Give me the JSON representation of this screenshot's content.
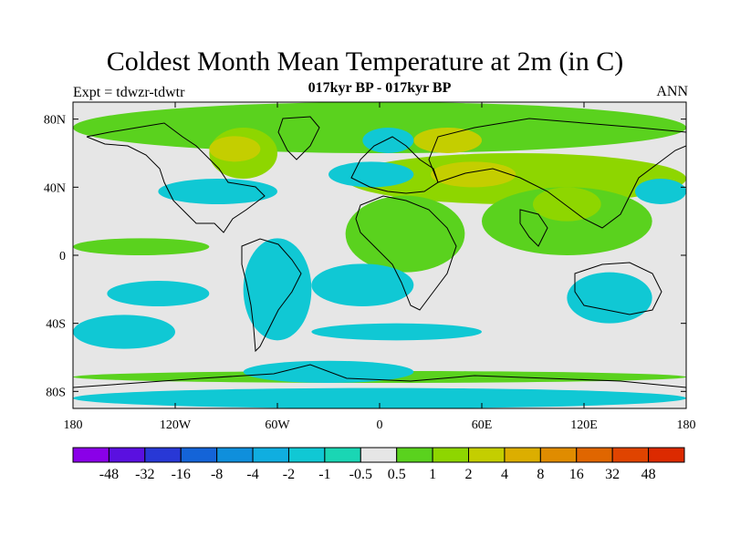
{
  "title": "Coldest Month Mean Temperature at 2m (in C)",
  "subtitle": "017kyr BP - 017kyr BP",
  "left_label": "Expt = tdwzr-tdwtr",
  "right_label": "ANN",
  "chart_data": {
    "type": "heatmap",
    "projection": "cylindrical equidistant",
    "xlim": [
      -180,
      180
    ],
    "ylim": [
      -90,
      90
    ],
    "x_ticks": [
      {
        "value": -180,
        "label": "180"
      },
      {
        "value": -120,
        "label": "120W"
      },
      {
        "value": -60,
        "label": "60W"
      },
      {
        "value": 0,
        "label": "0"
      },
      {
        "value": 60,
        "label": "60E"
      },
      {
        "value": 120,
        "label": "120E"
      },
      {
        "value": 180,
        "label": "180"
      }
    ],
    "y_ticks": [
      {
        "value": 80,
        "label": "80N"
      },
      {
        "value": 40,
        "label": "40N"
      },
      {
        "value": 0,
        "label": "0"
      },
      {
        "value": -40,
        "label": "40S"
      },
      {
        "value": -80,
        "label": "80S"
      }
    ],
    "colorbar": {
      "labels": [
        "-48",
        "-32",
        "-16",
        "-8",
        "-4",
        "-2",
        "-1",
        "-0.5",
        "0.5",
        "1",
        "2",
        "4",
        "8",
        "16",
        "32",
        "48"
      ],
      "colors": [
        "#8a00e8",
        "#5a10e0",
        "#2838d6",
        "#1464d8",
        "#0f8fdc",
        "#10aee0",
        "#10c8d4",
        "#1ad6b4",
        "#e6e6e6",
        "#5ad21e",
        "#8ed600",
        "#c4ce00",
        "#dcae00",
        "#e08c00",
        "#e06600",
        "#e04400",
        "#dc2a00"
      ]
    },
    "regions": [
      {
        "color_index": 9,
        "lon": [
          -180,
          180
        ],
        "lat": [
          60,
          90
        ],
        "note": "arctic band"
      },
      {
        "color_index": 10,
        "lon": [
          -100,
          -60
        ],
        "lat": [
          45,
          75
        ]
      },
      {
        "color_index": 11,
        "lon": [
          -100,
          -70
        ],
        "lat": [
          55,
          70
        ]
      },
      {
        "color_index": 11,
        "lon": [
          20,
          60
        ],
        "lat": [
          60,
          75
        ]
      },
      {
        "color_index": 10,
        "lon": [
          -20,
          180
        ],
        "lat": [
          30,
          60
        ]
      },
      {
        "color_index": 11,
        "lon": [
          30,
          80
        ],
        "lat": [
          40,
          55
        ]
      },
      {
        "color_index": 9,
        "lon": [
          -20,
          50
        ],
        "lat": [
          -10,
          35
        ]
      },
      {
        "color_index": 9,
        "lon": [
          60,
          160
        ],
        "lat": [
          0,
          40
        ]
      },
      {
        "color_index": 10,
        "lon": [
          90,
          130
        ],
        "lat": [
          20,
          40
        ]
      },
      {
        "color_index": 9,
        "lon": [
          -180,
          -100
        ],
        "lat": [
          0,
          10
        ]
      },
      {
        "color_index": 9,
        "lon": [
          -180,
          180
        ],
        "lat": [
          -75,
          -68
        ]
      },
      {
        "color_index": 6,
        "lon": [
          -160,
          -100
        ],
        "lat": [
          -30,
          -15
        ]
      },
      {
        "color_index": 6,
        "lon": [
          -80,
          -40
        ],
        "lat": [
          -50,
          10
        ]
      },
      {
        "color_index": 6,
        "lon": [
          -40,
          20
        ],
        "lat": [
          -30,
          -5
        ]
      },
      {
        "color_index": 6,
        "lon": [
          110,
          160
        ],
        "lat": [
          -40,
          -10
        ]
      },
      {
        "color_index": 6,
        "lon": [
          -180,
          180
        ],
        "lat": [
          -90,
          -78
        ]
      },
      {
        "color_index": 6,
        "lon": [
          -180,
          -120
        ],
        "lat": [
          -55,
          -35
        ]
      },
      {
        "color_index": 6,
        "lon": [
          -40,
          60
        ],
        "lat": [
          -50,
          -40
        ]
      },
      {
        "color_index": 6,
        "lon": [
          -130,
          -60
        ],
        "lat": [
          30,
          45
        ]
      },
      {
        "color_index": 6,
        "lon": [
          -30,
          20
        ],
        "lat": [
          40,
          55
        ]
      },
      {
        "color_index": 6,
        "lon": [
          -10,
          20
        ],
        "lat": [
          60,
          75
        ]
      },
      {
        "color_index": 6,
        "lon": [
          150,
          180
        ],
        "lat": [
          30,
          45
        ]
      },
      {
        "color_index": 6,
        "lon": [
          -80,
          20
        ],
        "lat": [
          -75,
          -62
        ]
      }
    ]
  }
}
